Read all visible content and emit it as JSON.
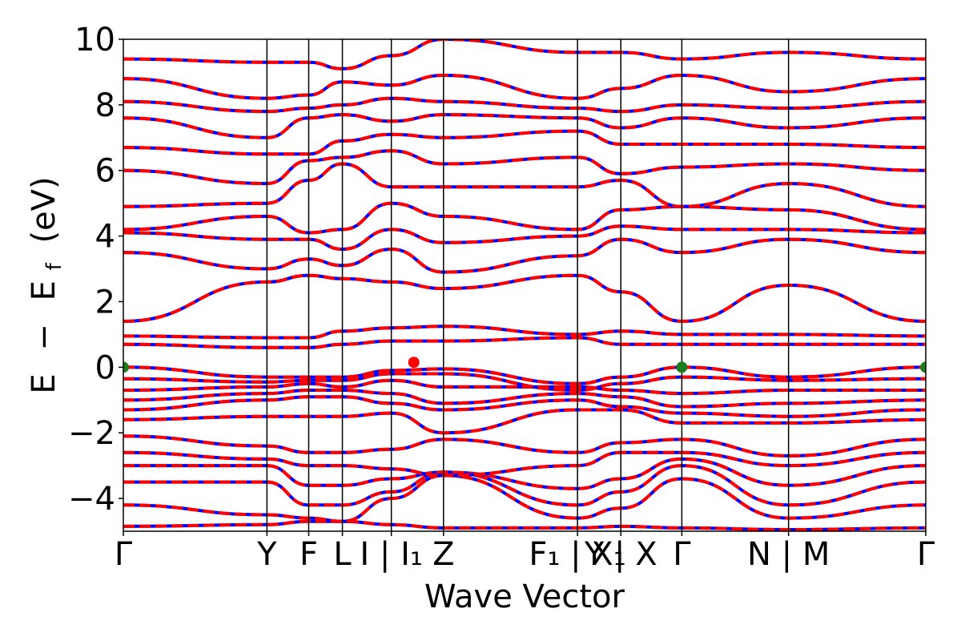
{
  "chart_data": {
    "type": "line",
    "title": "",
    "xlabel": "Wave Vector",
    "ylabel": "E − E_f (eV)",
    "ylabel_parts": {
      "a": "E",
      "minus": "−",
      "b": "E",
      "sub": "f",
      "unit": "(eV)"
    },
    "ylim": [
      -5,
      10
    ],
    "yticks": [
      -4,
      -2,
      0,
      2,
      4,
      6,
      8,
      10
    ],
    "ytick_labels": [
      "−4",
      "−2",
      "0",
      "2",
      "4",
      "6",
      "8",
      "10"
    ],
    "xlim": [
      0,
      1
    ],
    "kpath_ticks": [
      {
        "x": 0.0,
        "label": "Γ"
      },
      {
        "x": 0.179,
        "label": "Y"
      },
      {
        "x": 0.231,
        "label": "F"
      },
      {
        "x": 0.273,
        "label": "L"
      },
      {
        "x": 0.334,
        "label": "I | I₁"
      },
      {
        "x": 0.399,
        "label": "Z"
      },
      {
        "x": 0.566,
        "label": "F₁ | X₁"
      },
      {
        "x": 0.62,
        "label": "Y | X"
      },
      {
        "x": 0.696,
        "label": "Γ"
      },
      {
        "x": 0.829,
        "label": "N | M"
      },
      {
        "x": 1.0,
        "label": "Γ"
      }
    ],
    "grid": false,
    "series_styles": {
      "dft": {
        "color": "#0000ff",
        "style": "solid"
      },
      "fit": {
        "color": "#ff0000",
        "style": "dashed"
      }
    },
    "markers": [
      {
        "x": 0.0,
        "y": 0.0,
        "color": "#1a7f1a"
      },
      {
        "x": 0.362,
        "y": 0.15,
        "color": "#ff0000"
      },
      {
        "x": 0.696,
        "y": 0.0,
        "color": "#1a7f1a"
      },
      {
        "x": 1.0,
        "y": 0.0,
        "color": "#1a7f1a"
      }
    ],
    "bands": [
      {
        "x": [
          0,
          0.179,
          0.231,
          0.273,
          0.334,
          0.399,
          0.566,
          0.62,
          0.696,
          0.829,
          1
        ],
        "y": [
          -4.85,
          -4.8,
          -4.7,
          -4.7,
          -4.8,
          -4.9,
          -4.9,
          -4.85,
          -4.9,
          -4.95,
          -4.9
        ]
      },
      {
        "x": [
          0,
          0.179,
          0.231,
          0.273,
          0.334,
          0.399,
          0.566,
          0.62,
          0.696,
          0.829,
          1
        ],
        "y": [
          -4.2,
          -4.5,
          -4.6,
          -4.7,
          -4.0,
          -3.3,
          -4.6,
          -4.3,
          -3.4,
          -4.6,
          -4.2
        ]
      },
      {
        "x": [
          0,
          0.179,
          0.231,
          0.273,
          0.334,
          0.399,
          0.566,
          0.62,
          0.696,
          0.829,
          1
        ],
        "y": [
          -3.5,
          -3.5,
          -4.2,
          -4.2,
          -3.8,
          -3.2,
          -4.2,
          -3.8,
          -3.0,
          -4.2,
          -3.5
        ]
      },
      {
        "x": [
          0,
          0.179,
          0.231,
          0.273,
          0.334,
          0.399,
          0.566,
          0.62,
          0.696,
          0.829,
          1
        ],
        "y": [
          -3.0,
          -3.0,
          -3.6,
          -3.6,
          -3.4,
          -3.2,
          -3.7,
          -3.4,
          -2.8,
          -3.6,
          -3.0
        ]
      },
      {
        "x": [
          0,
          0.179,
          0.231,
          0.273,
          0.334,
          0.399,
          0.566,
          0.62,
          0.696,
          0.829,
          1
        ],
        "y": [
          -2.6,
          -2.8,
          -3.0,
          -3.0,
          -3.1,
          -3.3,
          -3.0,
          -2.6,
          -2.6,
          -3.0,
          -2.6
        ]
      },
      {
        "x": [
          0,
          0.179,
          0.231,
          0.273,
          0.334,
          0.399,
          0.566,
          0.62,
          0.696,
          0.829,
          1
        ],
        "y": [
          -2.1,
          -2.4,
          -2.6,
          -2.6,
          -2.5,
          -2.2,
          -2.6,
          -2.3,
          -2.2,
          -2.7,
          -2.2
        ]
      },
      {
        "x": [
          0,
          0.179,
          0.231,
          0.273,
          0.334,
          0.399,
          0.566,
          0.62,
          0.696,
          0.829,
          1
        ],
        "y": [
          -1.6,
          -1.5,
          -1.5,
          -1.5,
          -1.4,
          -2.0,
          -1.3,
          -1.3,
          -1.7,
          -1.7,
          -1.6
        ]
      },
      {
        "x": [
          0,
          0.179,
          0.231,
          0.273,
          0.334,
          0.399,
          0.566,
          0.62,
          0.696,
          0.829,
          1
        ],
        "y": [
          -1.3,
          -1.0,
          -0.9,
          -0.9,
          -1.1,
          -1.3,
          -1.0,
          -1.2,
          -1.4,
          -1.5,
          -1.3
        ]
      },
      {
        "x": [
          0,
          0.179,
          0.231,
          0.273,
          0.334,
          0.399,
          0.566,
          0.62,
          0.696,
          0.829,
          1
        ],
        "y": [
          -1.0,
          -0.8,
          -0.7,
          -0.7,
          -0.8,
          -1.1,
          -0.8,
          -0.9,
          -1.2,
          -1.1,
          -1.0
        ]
      },
      {
        "x": [
          0,
          0.179,
          0.231,
          0.273,
          0.334,
          0.399,
          0.566,
          0.62,
          0.696,
          0.829,
          1
        ],
        "y": [
          -0.7,
          -0.6,
          -0.5,
          -0.6,
          -0.4,
          -0.6,
          -0.6,
          -0.7,
          -0.8,
          -0.7,
          -0.7
        ]
      },
      {
        "x": [
          0,
          0.179,
          0.231,
          0.273,
          0.334,
          0.399,
          0.566,
          0.62,
          0.696,
          0.829,
          1
        ],
        "y": [
          -0.35,
          -0.45,
          -0.4,
          -0.4,
          -0.2,
          -0.2,
          -0.7,
          -0.5,
          -0.3,
          -0.4,
          -0.35
        ]
      },
      {
        "x": [
          0,
          0.179,
          0.231,
          0.273,
          0.334,
          0.399,
          0.566,
          0.62,
          0.696,
          0.829,
          1
        ],
        "y": [
          0.0,
          -0.3,
          -0.3,
          -0.3,
          -0.1,
          -0.05,
          -0.5,
          -0.3,
          0.0,
          -0.3,
          0.0
        ]
      },
      {
        "x": [
          0,
          0.179,
          0.231,
          0.273,
          0.334,
          0.399,
          0.566,
          0.62,
          0.696,
          0.829,
          1
        ],
        "y": [
          0.7,
          0.6,
          0.6,
          0.7,
          0.8,
          0.8,
          0.9,
          0.7,
          0.7,
          0.7,
          0.7
        ]
      },
      {
        "x": [
          0,
          0.179,
          0.231,
          0.273,
          0.334,
          0.399,
          0.566,
          0.62,
          0.696,
          0.829,
          1
        ],
        "y": [
          0.95,
          0.9,
          0.9,
          1.1,
          1.2,
          1.25,
          1.0,
          1.1,
          1.0,
          1.0,
          0.95
        ]
      },
      {
        "x": [
          0,
          0.179,
          0.231,
          0.273,
          0.334,
          0.399,
          0.566,
          0.62,
          0.696,
          0.829,
          1
        ],
        "y": [
          1.4,
          2.6,
          2.8,
          2.7,
          2.6,
          2.4,
          2.8,
          2.3,
          1.4,
          2.5,
          1.4
        ]
      },
      {
        "x": [
          0,
          0.179,
          0.231,
          0.273,
          0.334,
          0.399,
          0.566,
          0.62,
          0.696,
          0.829,
          1
        ],
        "y": [
          3.5,
          3.0,
          3.3,
          3.1,
          3.6,
          2.9,
          3.4,
          3.9,
          3.5,
          3.9,
          3.5
        ]
      },
      {
        "x": [
          0,
          0.179,
          0.231,
          0.273,
          0.334,
          0.399,
          0.566,
          0.62,
          0.696,
          0.829,
          1
        ],
        "y": [
          4.1,
          3.9,
          3.9,
          3.6,
          4.2,
          3.8,
          4.0,
          4.3,
          4.2,
          4.2,
          4.1
        ]
      },
      {
        "x": [
          0,
          0.179,
          0.231,
          0.273,
          0.334,
          0.399,
          0.566,
          0.62,
          0.696,
          0.829,
          1
        ],
        "y": [
          4.2,
          4.6,
          4.1,
          4.2,
          5.0,
          4.6,
          4.2,
          4.8,
          4.9,
          4.8,
          4.2
        ]
      },
      {
        "x": [
          0,
          0.179,
          0.231,
          0.273,
          0.334,
          0.399,
          0.566,
          0.62,
          0.696,
          0.829,
          1
        ],
        "y": [
          4.9,
          5.0,
          5.7,
          6.2,
          5.5,
          5.5,
          5.5,
          5.7,
          4.9,
          5.6,
          4.9
        ]
      },
      {
        "x": [
          0,
          0.179,
          0.231,
          0.273,
          0.334,
          0.399,
          0.566,
          0.62,
          0.696,
          0.829,
          1
        ],
        "y": [
          6.0,
          5.6,
          6.3,
          6.4,
          6.6,
          6.2,
          6.4,
          5.9,
          6.1,
          6.2,
          6.0
        ]
      },
      {
        "x": [
          0,
          0.179,
          0.231,
          0.273,
          0.334,
          0.399,
          0.566,
          0.62,
          0.696,
          0.829,
          1
        ],
        "y": [
          6.7,
          6.5,
          6.5,
          6.9,
          7.1,
          7.0,
          7.2,
          6.8,
          6.8,
          6.8,
          6.7
        ]
      },
      {
        "x": [
          0,
          0.179,
          0.231,
          0.273,
          0.334,
          0.399,
          0.566,
          0.62,
          0.696,
          0.829,
          1
        ],
        "y": [
          7.6,
          7.0,
          7.6,
          7.7,
          7.5,
          7.7,
          7.6,
          7.3,
          7.6,
          7.3,
          7.6
        ]
      },
      {
        "x": [
          0,
          0.179,
          0.231,
          0.273,
          0.334,
          0.399,
          0.566,
          0.62,
          0.696,
          0.829,
          1
        ],
        "y": [
          8.1,
          7.8,
          7.9,
          8.0,
          8.2,
          8.1,
          7.9,
          7.8,
          8.0,
          7.9,
          8.1
        ]
      },
      {
        "x": [
          0,
          0.179,
          0.231,
          0.273,
          0.334,
          0.399,
          0.566,
          0.62,
          0.696,
          0.829,
          1
        ],
        "y": [
          8.8,
          8.2,
          8.3,
          8.7,
          8.6,
          8.9,
          8.2,
          8.5,
          8.9,
          8.4,
          8.8
        ]
      },
      {
        "x": [
          0,
          0.179,
          0.231,
          0.273,
          0.334,
          0.399,
          0.566,
          0.62,
          0.696,
          0.829,
          1
        ],
        "y": [
          9.4,
          9.3,
          9.3,
          9.1,
          9.5,
          10.0,
          9.6,
          9.6,
          9.4,
          9.6,
          9.4
        ]
      }
    ]
  }
}
